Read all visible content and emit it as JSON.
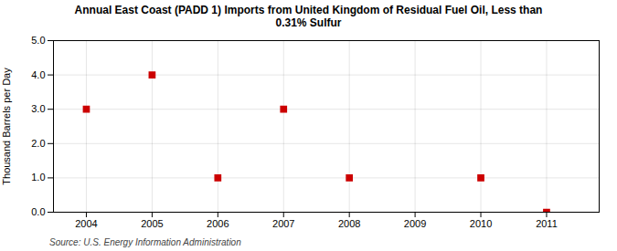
{
  "chart_data": {
    "type": "scatter",
    "title": "Annual East Coast (PADD 1) Imports from United Kingdom of Residual Fuel Oil, Less than\n0.31% Sulfur",
    "ylabel": "Thousand Barrels per Day",
    "source": "Source: U.S. Energy Information Administration",
    "x": [
      2004,
      2005,
      2006,
      2007,
      2008,
      2010,
      2011
    ],
    "values": [
      3.0,
      4.0,
      1.0,
      3.0,
      1.0,
      1.0,
      0.0
    ],
    "color": "#CC0000",
    "marker": "square",
    "xlim": [
      2003.5,
      2011.8
    ],
    "ylim": [
      0.0,
      5.0
    ],
    "xticks": [
      2004,
      2005,
      2006,
      2007,
      2008,
      2009,
      2010,
      2011
    ],
    "yticks": [
      {
        "value": 0,
        "label": "0.0"
      },
      {
        "value": 1,
        "label": "1.0"
      },
      {
        "value": 2,
        "label": "2.0"
      },
      {
        "value": 3,
        "label": "3.0"
      },
      {
        "value": 4,
        "label": "4.0"
      },
      {
        "value": 5,
        "label": "5.0"
      }
    ],
    "grid": true
  }
}
